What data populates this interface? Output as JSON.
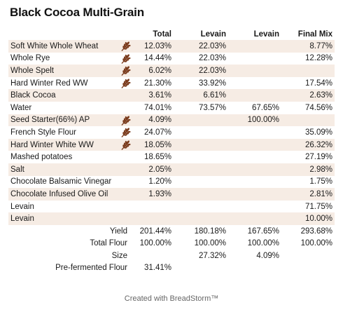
{
  "title": "Black Cocoa Multi-Grain",
  "columns": [
    "",
    "Total",
    "Levain",
    "Levain",
    "Final Mix"
  ],
  "rows": [
    {
      "name": "Soft White Whole Wheat",
      "wheat": true,
      "vals": [
        "12.03%",
        "22.03%",
        "",
        "8.77%"
      ]
    },
    {
      "name": "Whole Rye",
      "wheat": true,
      "vals": [
        "14.44%",
        "22.03%",
        "",
        "12.28%"
      ]
    },
    {
      "name": "Whole Spelt",
      "wheat": true,
      "vals": [
        "6.02%",
        "22.03%",
        "",
        ""
      ]
    },
    {
      "name": "Hard Winter Red WW",
      "wheat": true,
      "vals": [
        "21.30%",
        "33.92%",
        "",
        "17.54%"
      ]
    },
    {
      "name": "Black Cocoa",
      "wheat": false,
      "vals": [
        "3.61%",
        "6.61%",
        "",
        "2.63%"
      ]
    },
    {
      "name": "Water",
      "wheat": false,
      "vals": [
        "74.01%",
        "73.57%",
        "67.65%",
        "74.56%"
      ]
    },
    {
      "name": "Seed Starter(66%) AP",
      "wheat": true,
      "vals": [
        "4.09%",
        "",
        "100.00%",
        ""
      ]
    },
    {
      "name": "French Style Flour",
      "wheat": true,
      "vals": [
        "24.07%",
        "",
        "",
        "35.09%"
      ]
    },
    {
      "name": "Hard Winter White WW",
      "wheat": true,
      "vals": [
        "18.05%",
        "",
        "",
        "26.32%"
      ]
    },
    {
      "name": "Mashed potatoes",
      "wheat": false,
      "vals": [
        "18.65%",
        "",
        "",
        "27.19%"
      ]
    },
    {
      "name": "Salt",
      "wheat": false,
      "vals": [
        "2.05%",
        "",
        "",
        "2.98%"
      ]
    },
    {
      "name": "Chocolate Balsamic Vinegar",
      "wheat": false,
      "vals": [
        "1.20%",
        "",
        "",
        "1.75%"
      ]
    },
    {
      "name": "Chocolate Infused Olive Oil",
      "wheat": false,
      "vals": [
        "1.93%",
        "",
        "",
        "2.81%"
      ]
    },
    {
      "name": "Levain",
      "wheat": false,
      "vals": [
        "",
        "",
        "",
        "71.75%"
      ]
    },
    {
      "name": "Levain",
      "wheat": false,
      "vals": [
        "",
        "",
        "",
        "10.00%"
      ]
    }
  ],
  "summary": [
    {
      "name": "Yield",
      "vals": [
        "201.44%",
        "180.18%",
        "167.65%",
        "293.68%"
      ]
    },
    {
      "name": "Total Flour",
      "vals": [
        "100.00%",
        "100.00%",
        "100.00%",
        "100.00%"
      ]
    },
    {
      "name": "Size",
      "vals": [
        "",
        "27.32%",
        "4.09%",
        ""
      ]
    },
    {
      "name": "Pre-fermented Flour",
      "vals": [
        "31.41%",
        "",
        "",
        ""
      ]
    }
  ],
  "icons": {
    "wheat": "wheat-icon",
    "wheat_color": "#7a3b1c"
  },
  "colors": {
    "shade": "#f6ece4"
  },
  "footer": "Created with BreadStorm™"
}
